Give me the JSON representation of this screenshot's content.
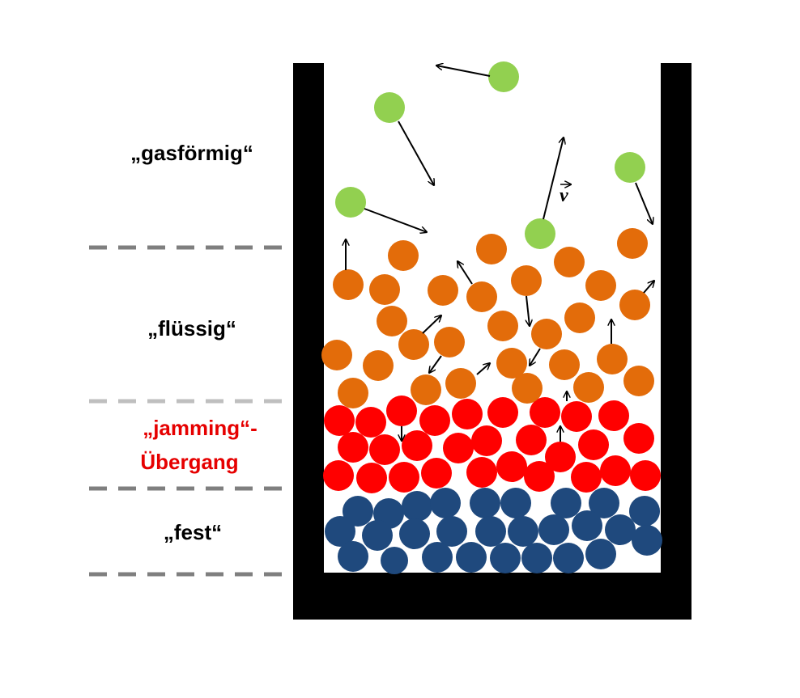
{
  "labels": {
    "gas": "„gasförmig“",
    "liquid": "„flüssig“",
    "jamming_line1": "„jamming“-",
    "jamming_line2": "Übergang",
    "solid": "„fest“",
    "velocity": "v"
  },
  "colors": {
    "gas": "#92d050",
    "liquid": "#e36c0a",
    "jamming": "#ff0000",
    "solid": "#1f497d",
    "container": "#000000",
    "divider_dark": "#7f7f7f",
    "divider_light": "#bfbfbf",
    "label_default": "#000000",
    "label_highlight": "#e60000"
  }
}
